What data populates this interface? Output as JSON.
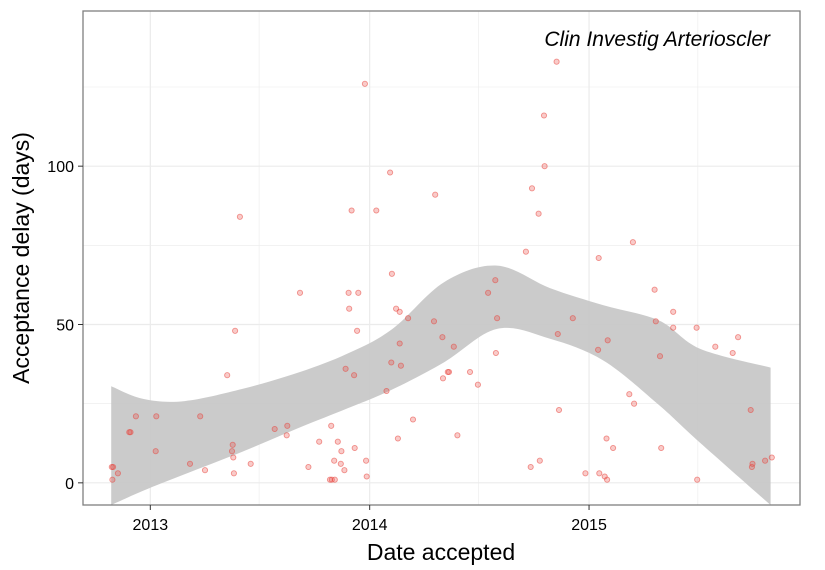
{
  "chart_data": {
    "type": "scatter",
    "title": "",
    "annotation": "Clin Investig Arterioscler",
    "xlabel": "Date accepted",
    "ylabel": "Acceptance delay (days)",
    "x_ticks": [
      "2013",
      "2014",
      "2015"
    ],
    "y_ticks": [
      0,
      50,
      100
    ],
    "xlim": [
      "2012-09-11",
      "2015-12-18"
    ],
    "ylim": [
      -7,
      149
    ],
    "grid": true,
    "colors": {
      "point": "#e8433c",
      "smooth_band": "#c8c8c8",
      "grid": "#ebebeb",
      "panel_border": "#7f7f7f"
    },
    "points": [
      {
        "x": "2012-10-29",
        "y": 5
      },
      {
        "x": "2012-10-31",
        "y": 5
      },
      {
        "x": "2012-10-30",
        "y": 1
      },
      {
        "x": "2012-11-08",
        "y": 3
      },
      {
        "x": "2012-11-27",
        "y": 16
      },
      {
        "x": "2012-11-29",
        "y": 16
      },
      {
        "x": "2012-12-08",
        "y": 21
      },
      {
        "x": "2013-01-11",
        "y": 21
      },
      {
        "x": "2013-01-10",
        "y": 10
      },
      {
        "x": "2013-03-08",
        "y": 6
      },
      {
        "x": "2013-03-25",
        "y": 21
      },
      {
        "x": "2013-04-02",
        "y": 4
      },
      {
        "x": "2013-05-09",
        "y": 34
      },
      {
        "x": "2013-05-18",
        "y": 12
      },
      {
        "x": "2013-05-17",
        "y": 10
      },
      {
        "x": "2013-05-19",
        "y": 8
      },
      {
        "x": "2013-05-20",
        "y": 3
      },
      {
        "x": "2013-05-22",
        "y": 48
      },
      {
        "x": "2013-05-30",
        "y": 84
      },
      {
        "x": "2013-06-17",
        "y": 6
      },
      {
        "x": "2013-07-27",
        "y": 17
      },
      {
        "x": "2013-08-17",
        "y": 18
      },
      {
        "x": "2013-08-16",
        "y": 15
      },
      {
        "x": "2013-09-07",
        "y": 60
      },
      {
        "x": "2013-09-21",
        "y": 5
      },
      {
        "x": "2013-10-09",
        "y": 13
      },
      {
        "x": "2013-10-29",
        "y": 18
      },
      {
        "x": "2013-10-27",
        "y": 1
      },
      {
        "x": "2013-10-30",
        "y": 1
      },
      {
        "x": "2013-11-04",
        "y": 1
      },
      {
        "x": "2013-11-03",
        "y": 7
      },
      {
        "x": "2013-11-09",
        "y": 13
      },
      {
        "x": "2013-11-14",
        "y": 6
      },
      {
        "x": "2013-11-15",
        "y": 10
      },
      {
        "x": "2013-11-22",
        "y": 36
      },
      {
        "x": "2013-11-20",
        "y": 4
      },
      {
        "x": "2013-11-27",
        "y": 60
      },
      {
        "x": "2013-11-28",
        "y": 55
      },
      {
        "x": "2013-12-02",
        "y": 86
      },
      {
        "x": "2013-12-06",
        "y": 34
      },
      {
        "x": "2013-12-07",
        "y": 11
      },
      {
        "x": "2013-12-11",
        "y": 48
      },
      {
        "x": "2013-12-13",
        "y": 60
      },
      {
        "x": "2013-12-24",
        "y": 126
      },
      {
        "x": "2013-12-26",
        "y": 7
      },
      {
        "x": "2013-12-27",
        "y": 2
      },
      {
        "x": "2014-01-12",
        "y": 86
      },
      {
        "x": "2014-01-29",
        "y": 29
      },
      {
        "x": "2014-02-04",
        "y": 98
      },
      {
        "x": "2014-02-06",
        "y": 38
      },
      {
        "x": "2014-02-07",
        "y": 66
      },
      {
        "x": "2014-02-14",
        "y": 55
      },
      {
        "x": "2014-02-17",
        "y": 14
      },
      {
        "x": "2014-02-20",
        "y": 54
      },
      {
        "x": "2014-02-20",
        "y": 44
      },
      {
        "x": "2014-02-22",
        "y": 37
      },
      {
        "x": "2014-03-06",
        "y": 52
      },
      {
        "x": "2014-03-14",
        "y": 20
      },
      {
        "x": "2014-04-18",
        "y": 51
      },
      {
        "x": "2014-04-20",
        "y": 91
      },
      {
        "x": "2014-05-02",
        "y": 46
      },
      {
        "x": "2014-05-03",
        "y": 33
      },
      {
        "x": "2014-05-11",
        "y": 35
      },
      {
        "x": "2014-05-13",
        "y": 35
      },
      {
        "x": "2014-05-21",
        "y": 43
      },
      {
        "x": "2014-05-27",
        "y": 15
      },
      {
        "x": "2014-06-17",
        "y": 35
      },
      {
        "x": "2014-06-30",
        "y": 31
      },
      {
        "x": "2014-07-17",
        "y": 60
      },
      {
        "x": "2014-07-29",
        "y": 64
      },
      {
        "x": "2014-07-30",
        "y": 41
      },
      {
        "x": "2014-08-01",
        "y": 52
      },
      {
        "x": "2014-09-18",
        "y": 73
      },
      {
        "x": "2014-09-26",
        "y": 5
      },
      {
        "x": "2014-09-28",
        "y": 93
      },
      {
        "x": "2014-10-11",
        "y": 7
      },
      {
        "x": "2014-10-09",
        "y": 85
      },
      {
        "x": "2014-10-18",
        "y": 116
      },
      {
        "x": "2014-10-19",
        "y": 100
      },
      {
        "x": "2014-11-08",
        "y": 133
      },
      {
        "x": "2014-11-10",
        "y": 47
      },
      {
        "x": "2014-11-12",
        "y": 23
      },
      {
        "x": "2014-12-05",
        "y": 52
      },
      {
        "x": "2014-12-26",
        "y": 3
      },
      {
        "x": "2015-01-16",
        "y": 42
      },
      {
        "x": "2015-01-17",
        "y": 71
      },
      {
        "x": "2015-01-18",
        "y": 3
      },
      {
        "x": "2015-01-27",
        "y": 2
      },
      {
        "x": "2015-01-30",
        "y": 14
      },
      {
        "x": "2015-02-01",
        "y": 45
      },
      {
        "x": "2015-01-31",
        "y": 1
      },
      {
        "x": "2015-02-10",
        "y": 11
      },
      {
        "x": "2015-03-09",
        "y": 28
      },
      {
        "x": "2015-03-15",
        "y": 76
      },
      {
        "x": "2015-03-17",
        "y": 25
      },
      {
        "x": "2015-04-20",
        "y": 61
      },
      {
        "x": "2015-04-22",
        "y": 51
      },
      {
        "x": "2015-04-29",
        "y": 40
      },
      {
        "x": "2015-05-01",
        "y": 11
      },
      {
        "x": "2015-05-21",
        "y": 54
      },
      {
        "x": "2015-05-21",
        "y": 49
      },
      {
        "x": "2015-06-29",
        "y": 49
      },
      {
        "x": "2015-06-30",
        "y": 1
      },
      {
        "x": "2015-07-30",
        "y": 43
      },
      {
        "x": "2015-08-28",
        "y": 41
      },
      {
        "x": "2015-09-06",
        "y": 46
      },
      {
        "x": "2015-09-27",
        "y": 23
      },
      {
        "x": "2015-09-29",
        "y": 5
      },
      {
        "x": "2015-09-30",
        "y": 6
      },
      {
        "x": "2015-10-21",
        "y": 7
      },
      {
        "x": "2015-11-01",
        "y": 8
      }
    ],
    "smooth": {
      "x": [
        "2012-10-28",
        "2012-12-20",
        "2013-02-27",
        "2013-06-04",
        "2013-09-07",
        "2013-11-25",
        "2014-02-08",
        "2014-05-05",
        "2014-08-01",
        "2014-10-28",
        "2015-01-25",
        "2015-04-27",
        "2015-07-05",
        "2015-10-30"
      ],
      "lower": [
        -7.0,
        -2.5,
        2.7,
        9.9,
        17.5,
        23.5,
        29.5,
        38.1,
        48.6,
        45.5,
        38.6,
        24.6,
        12.6,
        -7.0
      ],
      "upper": [
        30.5,
        26.5,
        25.8,
        29.7,
        35.0,
        40.8,
        48.6,
        63.4,
        68.6,
        61.5,
        56.1,
        51.3,
        42.3,
        36.4
      ]
    }
  }
}
